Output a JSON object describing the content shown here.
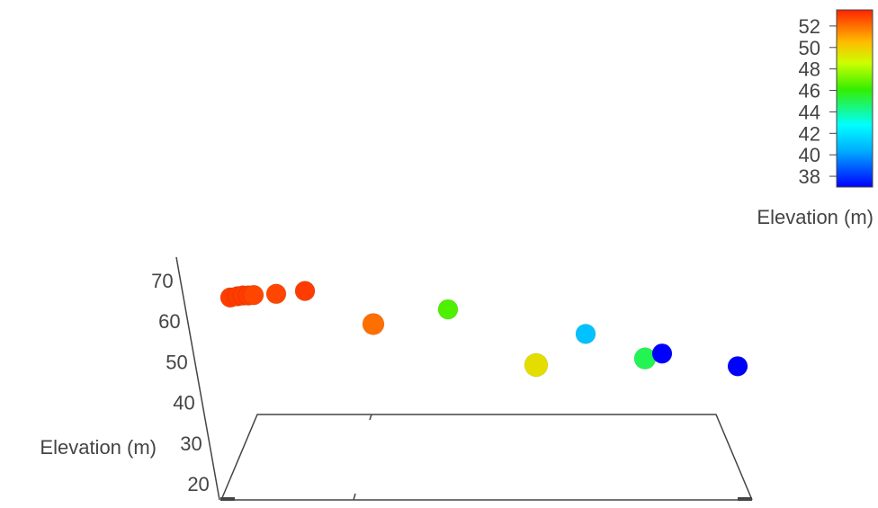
{
  "chart_data": {
    "type": "scatter",
    "mode": "3d",
    "z_axis": {
      "label": "Elevation (m)",
      "ticks": [
        20,
        30,
        40,
        50,
        60,
        70
      ]
    },
    "colorbar": {
      "title": "Elevation (m)",
      "ticks": [
        38,
        40,
        42,
        44,
        46,
        48,
        50,
        52
      ],
      "colorscale": "jet",
      "range": [
        37,
        53.5
      ]
    },
    "grid": false,
    "points": [
      {
        "elevation": 67.3,
        "color_value": 53.0
      },
      {
        "elevation": 67.6,
        "color_value": 53.0
      },
      {
        "elevation": 67.8,
        "color_value": 53.0
      },
      {
        "elevation": 67.8,
        "color_value": 53.0
      },
      {
        "elevation": 67.9,
        "color_value": 52.8
      },
      {
        "elevation": 68.2,
        "color_value": 52.8
      },
      {
        "elevation": 68.9,
        "color_value": 53.0
      },
      {
        "elevation": 60.8,
        "color_value": 52.0
      },
      {
        "elevation": 64.4,
        "color_value": 46.5
      },
      {
        "elevation": 58.4,
        "color_value": 41.0
      },
      {
        "elevation": 50.8,
        "color_value": 49.5
      },
      {
        "elevation": 52.4,
        "color_value": 45.0
      },
      {
        "elevation": 53.6,
        "color_value": 37.0
      },
      {
        "elevation": 50.5,
        "color_value": 37.0
      }
    ]
  }
}
